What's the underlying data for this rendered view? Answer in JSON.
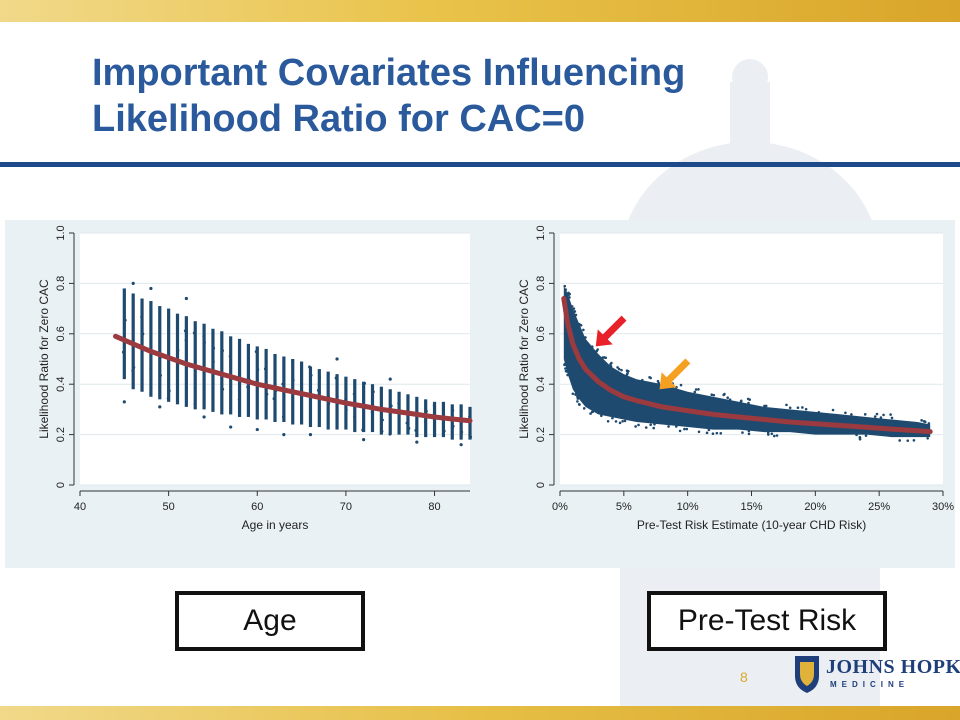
{
  "slide": {
    "title_line1": "Important Covariates Influencing",
    "title_line2": "Likelihood Ratio for CAC=0",
    "page_number": "8",
    "logo": {
      "word": "JOHNS HOPKINS",
      "sub": "MEDICINE"
    },
    "labels": {
      "age": "Age",
      "risk": "Pre-Test Risk"
    },
    "colors": {
      "title": "#2a5a9c",
      "points": "#1f4a70",
      "curve": "#9b3a3f",
      "arrow_red": "#e8202a",
      "arrow_orange": "#f5a020"
    }
  },
  "chart_data": [
    {
      "type": "scatter",
      "title": "",
      "xlabel": "Age in years",
      "ylabel": "Likelihood Ratio for Zero CAC",
      "xlim": [
        40,
        84
      ],
      "ylim": [
        0,
        1.0
      ],
      "xticks": [
        40,
        50,
        60,
        70,
        80
      ],
      "xtick_labels": [
        "40",
        "50",
        "60",
        "70",
        "80"
      ],
      "yticks": [
        0,
        0.2,
        0.4,
        0.6,
        0.8,
        1.0
      ],
      "ytick_labels": [
        "0",
        "0.2",
        "0.4",
        "0.6",
        "0.8",
        "1.0"
      ],
      "grid": true,
      "point_bands": [
        {
          "x": 45,
          "min": 0.42,
          "max": 0.78
        },
        {
          "x": 46,
          "min": 0.38,
          "max": 0.76
        },
        {
          "x": 47,
          "min": 0.37,
          "max": 0.74
        },
        {
          "x": 48,
          "min": 0.35,
          "max": 0.73
        },
        {
          "x": 49,
          "min": 0.34,
          "max": 0.71
        },
        {
          "x": 50,
          "min": 0.33,
          "max": 0.7
        },
        {
          "x": 51,
          "min": 0.32,
          "max": 0.68
        },
        {
          "x": 52,
          "min": 0.31,
          "max": 0.67
        },
        {
          "x": 53,
          "min": 0.3,
          "max": 0.65
        },
        {
          "x": 54,
          "min": 0.3,
          "max": 0.64
        },
        {
          "x": 55,
          "min": 0.29,
          "max": 0.62
        },
        {
          "x": 56,
          "min": 0.28,
          "max": 0.61
        },
        {
          "x": 57,
          "min": 0.28,
          "max": 0.59
        },
        {
          "x": 58,
          "min": 0.27,
          "max": 0.58
        },
        {
          "x": 59,
          "min": 0.27,
          "max": 0.56
        },
        {
          "x": 60,
          "min": 0.26,
          "max": 0.55
        },
        {
          "x": 61,
          "min": 0.26,
          "max": 0.54
        },
        {
          "x": 62,
          "min": 0.25,
          "max": 0.52
        },
        {
          "x": 63,
          "min": 0.25,
          "max": 0.51
        },
        {
          "x": 64,
          "min": 0.24,
          "max": 0.5
        },
        {
          "x": 65,
          "min": 0.24,
          "max": 0.49
        },
        {
          "x": 66,
          "min": 0.23,
          "max": 0.47
        },
        {
          "x": 67,
          "min": 0.23,
          "max": 0.46
        },
        {
          "x": 68,
          "min": 0.22,
          "max": 0.45
        },
        {
          "x": 69,
          "min": 0.22,
          "max": 0.44
        },
        {
          "x": 70,
          "min": 0.22,
          "max": 0.43
        },
        {
          "x": 71,
          "min": 0.21,
          "max": 0.42
        },
        {
          "x": 72,
          "min": 0.21,
          "max": 0.41
        },
        {
          "x": 73,
          "min": 0.21,
          "max": 0.4
        },
        {
          "x": 74,
          "min": 0.2,
          "max": 0.39
        },
        {
          "x": 75,
          "min": 0.2,
          "max": 0.38
        },
        {
          "x": 76,
          "min": 0.2,
          "max": 0.37
        },
        {
          "x": 77,
          "min": 0.2,
          "max": 0.36
        },
        {
          "x": 78,
          "min": 0.19,
          "max": 0.35
        },
        {
          "x": 79,
          "min": 0.19,
          "max": 0.34
        },
        {
          "x": 80,
          "min": 0.19,
          "max": 0.33
        },
        {
          "x": 81,
          "min": 0.19,
          "max": 0.33
        },
        {
          "x": 82,
          "min": 0.18,
          "max": 0.32
        },
        {
          "x": 83,
          "min": 0.18,
          "max": 0.32
        },
        {
          "x": 84,
          "min": 0.18,
          "max": 0.31
        }
      ],
      "outliers": [
        {
          "x": 45,
          "y": 0.33
        },
        {
          "x": 46,
          "y": 0.8
        },
        {
          "x": 48,
          "y": 0.78
        },
        {
          "x": 49,
          "y": 0.31
        },
        {
          "x": 52,
          "y": 0.74
        },
        {
          "x": 54,
          "y": 0.27
        },
        {
          "x": 57,
          "y": 0.23
        },
        {
          "x": 60,
          "y": 0.22
        },
        {
          "x": 63,
          "y": 0.2
        },
        {
          "x": 66,
          "y": 0.2
        },
        {
          "x": 69,
          "y": 0.5
        },
        {
          "x": 72,
          "y": 0.18
        },
        {
          "x": 75,
          "y": 0.42
        },
        {
          "x": 78,
          "y": 0.17
        },
        {
          "x": 83,
          "y": 0.16
        }
      ],
      "fit_curve": [
        {
          "x": 44,
          "y": 0.59
        },
        {
          "x": 46,
          "y": 0.56
        },
        {
          "x": 48,
          "y": 0.53
        },
        {
          "x": 50,
          "y": 0.505
        },
        {
          "x": 52,
          "y": 0.48
        },
        {
          "x": 54,
          "y": 0.46
        },
        {
          "x": 56,
          "y": 0.44
        },
        {
          "x": 58,
          "y": 0.42
        },
        {
          "x": 60,
          "y": 0.4
        },
        {
          "x": 62,
          "y": 0.385
        },
        {
          "x": 64,
          "y": 0.37
        },
        {
          "x": 66,
          "y": 0.355
        },
        {
          "x": 68,
          "y": 0.34
        },
        {
          "x": 70,
          "y": 0.325
        },
        {
          "x": 72,
          "y": 0.313
        },
        {
          "x": 74,
          "y": 0.3
        },
        {
          "x": 76,
          "y": 0.29
        },
        {
          "x": 78,
          "y": 0.28
        },
        {
          "x": 80,
          "y": 0.27
        },
        {
          "x": 82,
          "y": 0.262
        },
        {
          "x": 84,
          "y": 0.255
        }
      ]
    },
    {
      "type": "scatter",
      "title": "",
      "xlabel": "Pre-Test Risk Estimate (10-year CHD Risk)",
      "ylabel": "Likelihood Ratio for Zero CAC",
      "xlim": [
        0,
        0.3
      ],
      "ylim": [
        0,
        1.0
      ],
      "xticks": [
        0,
        0.05,
        0.1,
        0.15,
        0.2,
        0.25,
        0.3
      ],
      "xtick_labels": [
        "0%",
        "5%",
        "10%",
        "15%",
        "20%",
        "25%",
        "30%"
      ],
      "yticks": [
        0,
        0.2,
        0.4,
        0.6,
        0.8,
        1.0
      ],
      "ytick_labels": [
        "0",
        "0.2",
        "0.4",
        "0.6",
        "0.8",
        "1.0"
      ],
      "grid": true,
      "point_envelope": [
        {
          "x": 0.003,
          "min": 0.5,
          "max": 0.79
        },
        {
          "x": 0.006,
          "min": 0.44,
          "max": 0.76
        },
        {
          "x": 0.01,
          "min": 0.38,
          "max": 0.7
        },
        {
          "x": 0.015,
          "min": 0.34,
          "max": 0.64
        },
        {
          "x": 0.02,
          "min": 0.31,
          "max": 0.58
        },
        {
          "x": 0.03,
          "min": 0.28,
          "max": 0.52
        },
        {
          "x": 0.04,
          "min": 0.27,
          "max": 0.47
        },
        {
          "x": 0.05,
          "min": 0.26,
          "max": 0.44
        },
        {
          "x": 0.06,
          "min": 0.25,
          "max": 0.42
        },
        {
          "x": 0.08,
          "min": 0.24,
          "max": 0.4
        },
        {
          "x": 0.1,
          "min": 0.23,
          "max": 0.37
        },
        {
          "x": 0.12,
          "min": 0.22,
          "max": 0.35
        },
        {
          "x": 0.14,
          "min": 0.22,
          "max": 0.33
        },
        {
          "x": 0.16,
          "min": 0.21,
          "max": 0.31
        },
        {
          "x": 0.18,
          "min": 0.21,
          "max": 0.3
        },
        {
          "x": 0.2,
          "min": 0.2,
          "max": 0.29
        },
        {
          "x": 0.22,
          "min": 0.2,
          "max": 0.28
        },
        {
          "x": 0.24,
          "min": 0.2,
          "max": 0.27
        },
        {
          "x": 0.26,
          "min": 0.19,
          "max": 0.26
        },
        {
          "x": 0.28,
          "min": 0.19,
          "max": 0.25
        },
        {
          "x": 0.29,
          "min": 0.19,
          "max": 0.24
        }
      ],
      "fit_curve": [
        {
          "x": 0.003,
          "y": 0.74
        },
        {
          "x": 0.006,
          "y": 0.64
        },
        {
          "x": 0.01,
          "y": 0.56
        },
        {
          "x": 0.015,
          "y": 0.5
        },
        {
          "x": 0.02,
          "y": 0.46
        },
        {
          "x": 0.03,
          "y": 0.41
        },
        {
          "x": 0.04,
          "y": 0.375
        },
        {
          "x": 0.05,
          "y": 0.35
        },
        {
          "x": 0.06,
          "y": 0.335
        },
        {
          "x": 0.08,
          "y": 0.31
        },
        {
          "x": 0.1,
          "y": 0.295
        },
        {
          "x": 0.12,
          "y": 0.28
        },
        {
          "x": 0.14,
          "y": 0.27
        },
        {
          "x": 0.16,
          "y": 0.26
        },
        {
          "x": 0.18,
          "y": 0.25
        },
        {
          "x": 0.2,
          "y": 0.243
        },
        {
          "x": 0.22,
          "y": 0.236
        },
        {
          "x": 0.24,
          "y": 0.229
        },
        {
          "x": 0.26,
          "y": 0.222
        },
        {
          "x": 0.28,
          "y": 0.215
        },
        {
          "x": 0.29,
          "y": 0.212
        }
      ],
      "annotations": [
        {
          "kind": "arrow",
          "color": "red",
          "points_to": {
            "x": 0.028,
            "y": 0.55
          }
        },
        {
          "kind": "arrow",
          "color": "orange",
          "points_to": {
            "x": 0.078,
            "y": 0.38
          }
        }
      ]
    }
  ]
}
